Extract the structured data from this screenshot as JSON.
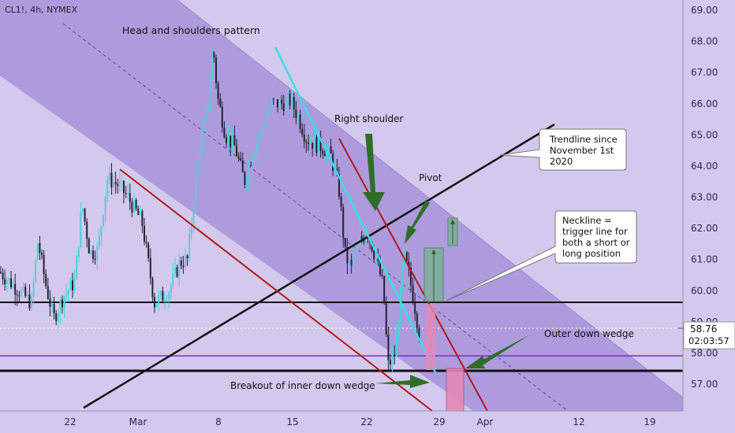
{
  "chart_data": {
    "type": "candlestick",
    "symbol_label": "CL1!, 4h, NYMEX",
    "title": "Head and shoulders pattern",
    "y_axis": {
      "ticks": [
        57.0,
        58.0,
        59.0,
        60.0,
        61.0,
        62.0,
        63.0,
        64.0,
        65.0,
        66.0,
        67.0,
        68.0,
        69.0
      ],
      "tick_labels": [
        "57.00",
        "58.00",
        "59.00",
        "60.00",
        "61.00",
        "62.00",
        "63.00",
        "64.00",
        "65.00",
        "66.00",
        "67.00",
        "68.00",
        "69.00"
      ],
      "range": [
        56.3,
        69.4
      ]
    },
    "x_axis": {
      "tick_labels": [
        "22",
        "Mar",
        "8",
        "15",
        "22",
        "29",
        "Apr",
        "12",
        "19"
      ]
    },
    "last_price": "58.76",
    "countdown": "02:03:57",
    "levels": {
      "neckline_upper": 59.62,
      "neckline_lower": 57.42,
      "purple_line": 57.9,
      "dotted_price": 58.76
    },
    "annotations": {
      "right_shoulder": "Right shoulder",
      "pivot": "Pivot",
      "trendline_box": [
        "Trendline since",
        "November 1st",
        "2020"
      ],
      "neckline_box": [
        "Neckline =",
        "trigger line for",
        "both a short or",
        "long position"
      ],
      "outer_wedge": "Outer down wedge",
      "inner_wedge": "Breakout of inner down wedge"
    },
    "colors": {
      "background": "#d3c9ec",
      "channel_fill": "#a996db",
      "candle_up": "#4fd0dc",
      "candle_down": "#222233",
      "red_lines": "#b21818",
      "cyan_line": "#35e0ea",
      "arrows": "#2f6e2a",
      "measure_green": "#7cb09a",
      "measure_pink": "#e48ab6",
      "purple_line": "#7a2fc8"
    }
  }
}
